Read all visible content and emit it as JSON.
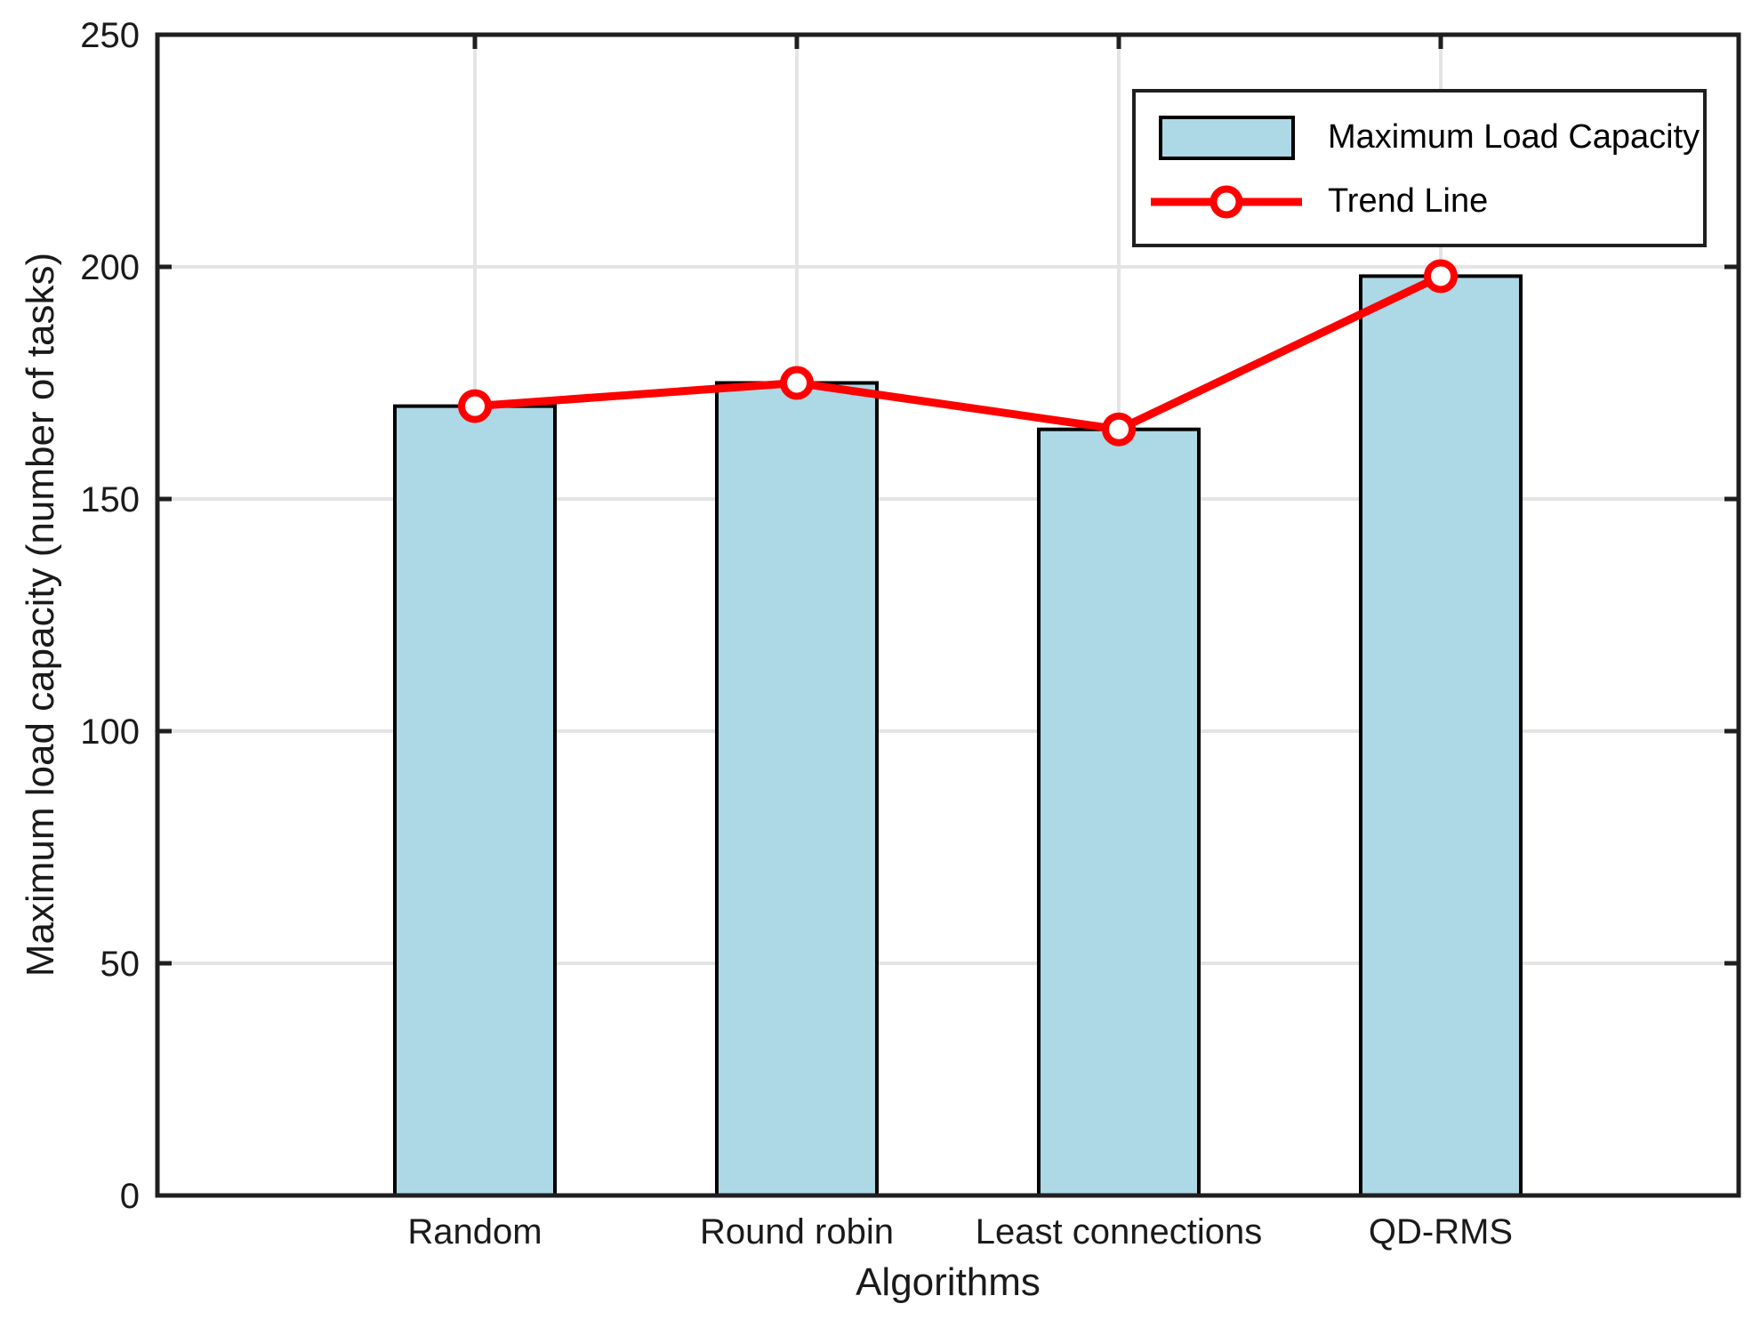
{
  "chart_data": {
    "type": "bar",
    "title": "",
    "categories": [
      "Random",
      "Round robin",
      "Least connections",
      "QD-RMS"
    ],
    "series": [
      {
        "name": "Maximum Load Capacity",
        "type": "bar",
        "values": [
          170,
          175,
          165,
          198
        ]
      },
      {
        "name": "Trend Line",
        "type": "line",
        "values": [
          170,
          175,
          165,
          198
        ],
        "marker": "circle"
      }
    ],
    "xlabel": "Algorithms",
    "ylabel": "Maximum load capacity (number of tasks)",
    "ylim": [
      0,
      250
    ],
    "yticks": [
      0,
      50,
      100,
      150,
      200,
      250
    ],
    "grid": "both",
    "legend": {
      "position": "top-right",
      "items": [
        "Maximum Load Capacity",
        "Trend Line"
      ]
    }
  },
  "colors": {
    "background": "#FFFFFF",
    "bar_fill": "#ADD8E6",
    "bar_edge": "#000000",
    "trend_line": "#FF0000",
    "marker_fill": "#FFFFFF",
    "grid": "#E4E4E4",
    "axis": "#1F1F1F",
    "text": "#1A1A1A"
  }
}
